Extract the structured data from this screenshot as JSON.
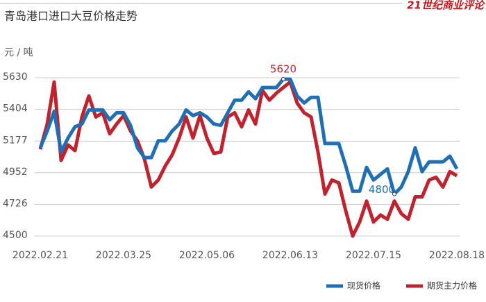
{
  "chart_data": {
    "type": "line",
    "title": "青岛港口进口大豆价格走势",
    "brand": "21世纪商业评论",
    "y_axis_label": "元 / 吨",
    "categories": [
      "2022.02.21",
      null,
      null,
      null,
      null,
      null,
      null,
      null,
      null,
      null,
      null,
      null,
      "2022.03.25",
      null,
      null,
      null,
      null,
      null,
      null,
      null,
      null,
      null,
      null,
      null,
      "2022.05.06",
      null,
      null,
      null,
      null,
      null,
      null,
      null,
      null,
      null,
      null,
      null,
      "2022.06.13",
      null,
      null,
      null,
      null,
      null,
      null,
      null,
      null,
      null,
      null,
      null,
      "2022.07.15",
      null,
      null,
      null,
      null,
      null,
      null,
      null,
      null,
      null,
      null,
      null,
      "2022.08.18"
    ],
    "series": [
      {
        "name": "现货价格",
        "color": "#1f6fb5",
        "values": [
          5130,
          5250,
          5390,
          5100,
          5200,
          5280,
          5300,
          5400,
          5400,
          5400,
          5330,
          5380,
          5380,
          5290,
          5130,
          5060,
          5060,
          5180,
          5180,
          5250,
          5300,
          5400,
          5360,
          5380,
          5350,
          5300,
          5290,
          5380,
          5470,
          5470,
          5530,
          5480,
          5560,
          5560,
          5560,
          5620,
          5620,
          5500,
          5450,
          5490,
          5490,
          5160,
          5160,
          5160,
          5000,
          4820,
          4820,
          4990,
          4900,
          4940,
          4980,
          4800,
          4850,
          4960,
          5130,
          4960,
          5030,
          5030,
          5030,
          5070,
          4980
        ]
      },
      {
        "name": "期货主力价格",
        "color": "#c0222e",
        "values": [
          5120,
          5300,
          5600,
          5040,
          5150,
          5110,
          5350,
          5500,
          5350,
          5380,
          5230,
          5300,
          5360,
          5250,
          5180,
          5050,
          4850,
          4900,
          5000,
          5080,
          5200,
          5350,
          5200,
          5360,
          5200,
          5090,
          5100,
          5350,
          5380,
          5280,
          5400,
          5300,
          5540,
          5470,
          5520,
          5560,
          5600,
          5450,
          5380,
          5350,
          5100,
          4800,
          4900,
          4880,
          4680,
          4500,
          4600,
          4750,
          4600,
          4650,
          4620,
          4750,
          4660,
          4620,
          4780,
          4780,
          4900,
          4920,
          4850,
          4960,
          4930
        ]
      }
    ],
    "annotations": [
      {
        "text": "5620",
        "series": 0,
        "index": 35
      },
      {
        "text": "4800",
        "series": 0,
        "index": 51
      }
    ],
    "ylim": [
      4500,
      5630
    ],
    "yticks": [
      4500,
      4726,
      4952,
      5177,
      5404,
      5630
    ],
    "grid": true,
    "legend": "bottom-right"
  }
}
